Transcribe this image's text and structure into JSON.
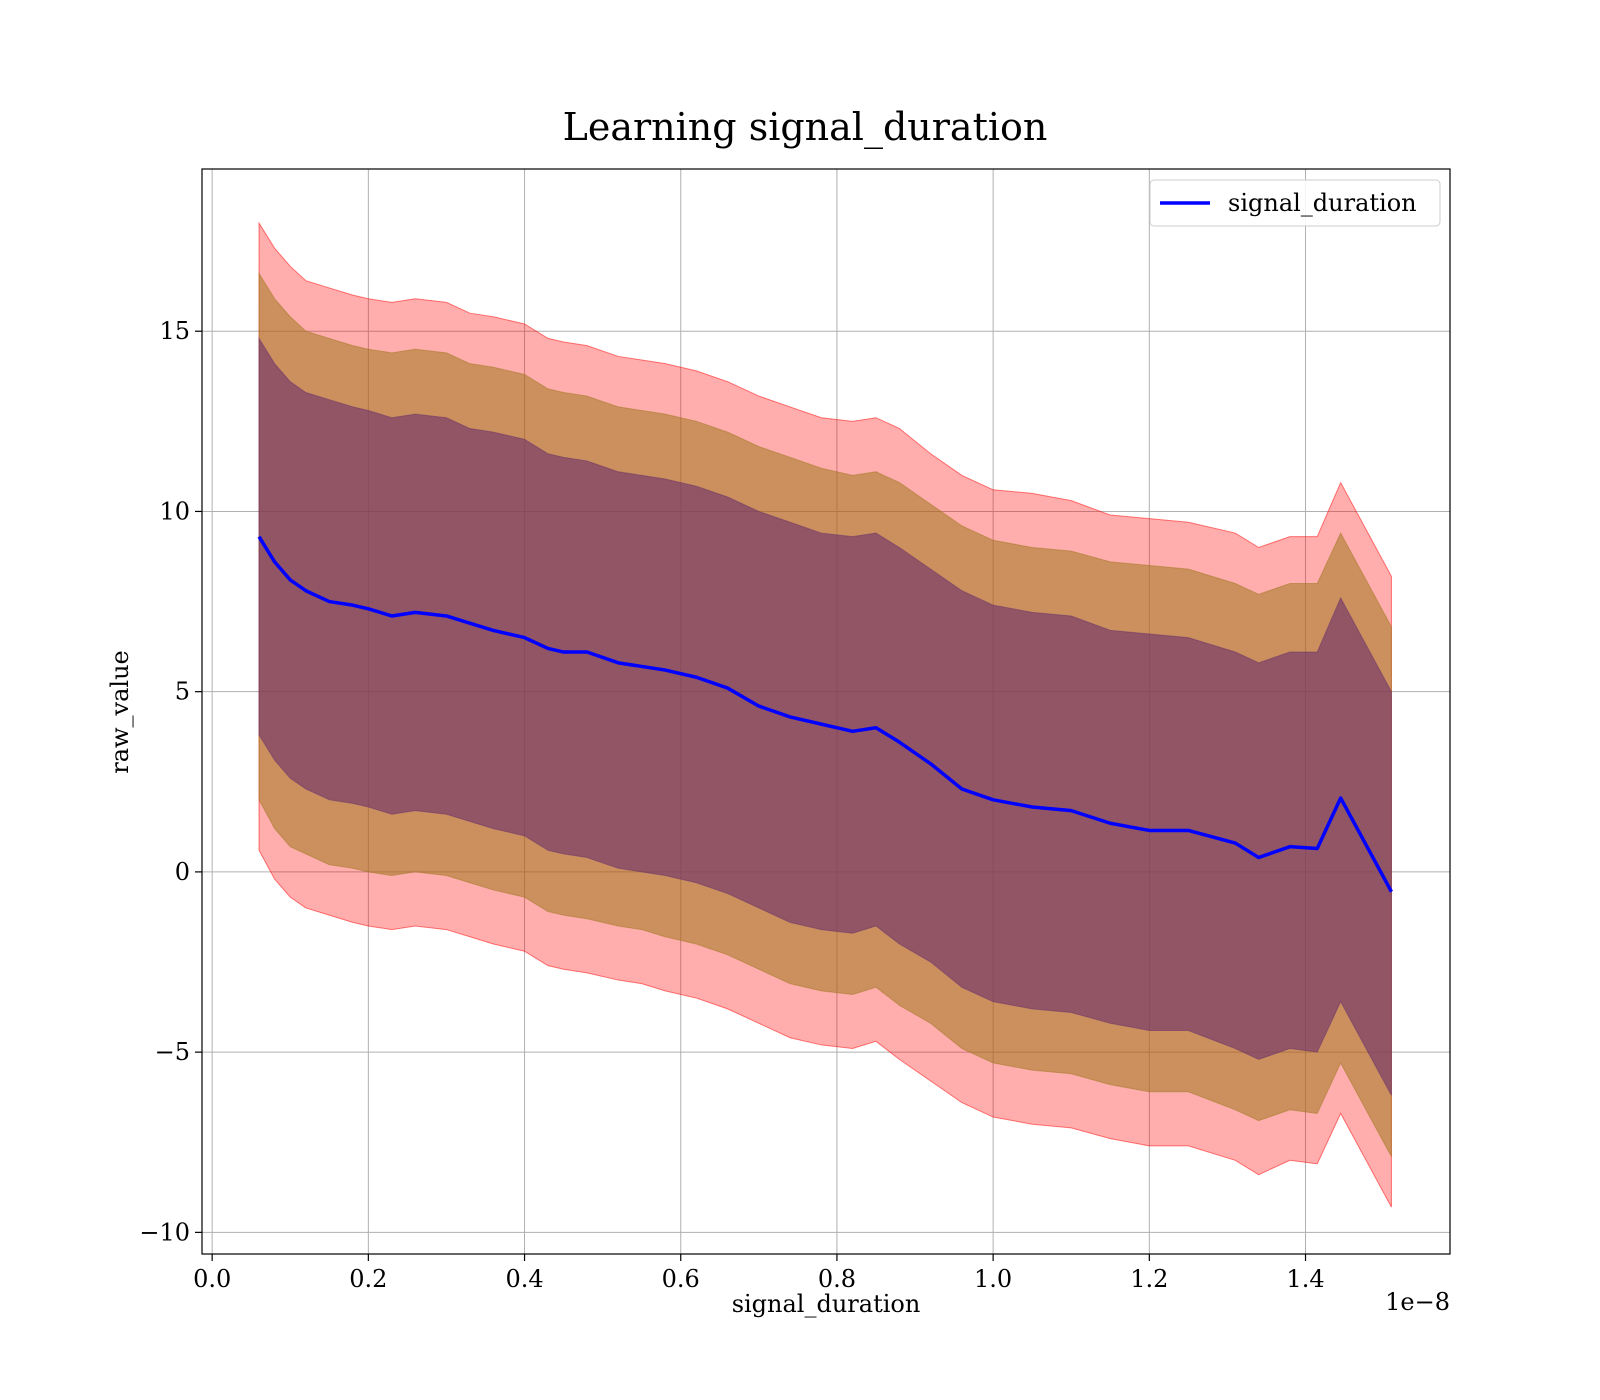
{
  "chart_data": {
    "type": "line",
    "title": "Learning signal_duration",
    "xlabel": "signal_duration",
    "ylabel": "raw_value",
    "x_offset_label": "1e−8",
    "xlim": [
      -0.013,
      1.585
    ],
    "ylim": [
      -10.6,
      19.5
    ],
    "xticks": [
      0.0,
      0.2,
      0.4,
      0.6,
      0.8,
      1.0,
      1.2,
      1.4
    ],
    "xtick_labels": [
      "0.0",
      "0.2",
      "0.4",
      "0.6",
      "0.8",
      "1.0",
      "1.2",
      "1.4"
    ],
    "yticks": [
      -10,
      -5,
      0,
      5,
      10,
      15
    ],
    "ytick_labels": [
      "−10",
      "−5",
      "0",
      "5",
      "10",
      "15"
    ],
    "grid": true,
    "legend": {
      "position": "top-right",
      "entries": [
        "signal_duration"
      ]
    },
    "colors": {
      "line": "#0000ff",
      "band_outer": "#ff0000",
      "band_middle": "#a0781e",
      "band_inner": "#6a2f6a"
    },
    "series": [
      {
        "name": "signal_duration",
        "x": [
          0.06,
          0.08,
          0.1,
          0.12,
          0.15,
          0.18,
          0.2,
          0.23,
          0.26,
          0.3,
          0.33,
          0.36,
          0.4,
          0.43,
          0.45,
          0.48,
          0.52,
          0.55,
          0.58,
          0.62,
          0.66,
          0.7,
          0.74,
          0.78,
          0.82,
          0.85,
          0.88,
          0.92,
          0.96,
          1.0,
          1.05,
          1.1,
          1.15,
          1.2,
          1.25,
          1.31,
          1.34,
          1.38,
          1.415,
          1.445,
          1.51
        ],
        "y": [
          9.3,
          8.6,
          8.1,
          7.8,
          7.5,
          7.4,
          7.3,
          7.1,
          7.2,
          7.1,
          6.9,
          6.7,
          6.5,
          6.2,
          6.1,
          6.1,
          5.8,
          5.7,
          5.6,
          5.4,
          5.1,
          4.6,
          4.3,
          4.1,
          3.9,
          4.0,
          3.6,
          3.0,
          2.3,
          2.0,
          1.8,
          1.7,
          1.35,
          1.15,
          1.15,
          0.8,
          0.4,
          0.7,
          0.65,
          2.05,
          -0.55
        ],
        "band_outer_upper": [
          18.0,
          17.3,
          16.8,
          16.4,
          16.2,
          16.0,
          15.9,
          15.8,
          15.9,
          15.8,
          15.5,
          15.4,
          15.2,
          14.8,
          14.7,
          14.6,
          14.3,
          14.2,
          14.1,
          13.9,
          13.6,
          13.2,
          12.9,
          12.6,
          12.5,
          12.6,
          12.3,
          11.6,
          11.0,
          10.6,
          10.5,
          10.3,
          9.9,
          9.8,
          9.7,
          9.4,
          9.0,
          9.3,
          9.3,
          10.8,
          8.2
        ],
        "band_outer_lower": [
          0.6,
          -0.2,
          -0.7,
          -1.0,
          -1.2,
          -1.4,
          -1.5,
          -1.6,
          -1.5,
          -1.6,
          -1.8,
          -2.0,
          -2.2,
          -2.6,
          -2.7,
          -2.8,
          -3.0,
          -3.1,
          -3.3,
          -3.5,
          -3.8,
          -4.2,
          -4.6,
          -4.8,
          -4.9,
          -4.7,
          -5.2,
          -5.8,
          -6.4,
          -6.8,
          -7.0,
          -7.1,
          -7.4,
          -7.6,
          -7.6,
          -8.0,
          -8.4,
          -8.0,
          -8.1,
          -6.7,
          -9.3
        ],
        "band_middle_upper": [
          16.6,
          15.9,
          15.4,
          15.0,
          14.8,
          14.6,
          14.5,
          14.4,
          14.5,
          14.4,
          14.1,
          14.0,
          13.8,
          13.4,
          13.3,
          13.2,
          12.9,
          12.8,
          12.7,
          12.5,
          12.2,
          11.8,
          11.5,
          11.2,
          11.0,
          11.1,
          10.8,
          10.2,
          9.6,
          9.2,
          9.0,
          8.9,
          8.6,
          8.5,
          8.4,
          8.0,
          7.7,
          8.0,
          8.0,
          9.4,
          6.8
        ],
        "band_middle_lower": [
          2.0,
          1.2,
          0.7,
          0.5,
          0.2,
          0.1,
          0.0,
          -0.1,
          0.0,
          -0.1,
          -0.3,
          -0.5,
          -0.7,
          -1.1,
          -1.2,
          -1.3,
          -1.5,
          -1.6,
          -1.8,
          -2.0,
          -2.3,
          -2.7,
          -3.1,
          -3.3,
          -3.4,
          -3.2,
          -3.7,
          -4.2,
          -4.9,
          -5.3,
          -5.5,
          -5.6,
          -5.9,
          -6.1,
          -6.1,
          -6.6,
          -6.9,
          -6.6,
          -6.7,
          -5.3,
          -7.9
        ],
        "band_inner_upper": [
          14.8,
          14.1,
          13.6,
          13.3,
          13.1,
          12.9,
          12.8,
          12.6,
          12.7,
          12.6,
          12.3,
          12.2,
          12.0,
          11.6,
          11.5,
          11.4,
          11.1,
          11.0,
          10.9,
          10.7,
          10.4,
          10.0,
          9.7,
          9.4,
          9.3,
          9.4,
          9.0,
          8.4,
          7.8,
          7.4,
          7.2,
          7.1,
          6.7,
          6.6,
          6.5,
          6.1,
          5.8,
          6.1,
          6.1,
          7.6,
          5.0
        ],
        "band_inner_lower": [
          3.8,
          3.1,
          2.6,
          2.3,
          2.0,
          1.9,
          1.8,
          1.6,
          1.7,
          1.6,
          1.4,
          1.2,
          1.0,
          0.6,
          0.5,
          0.4,
          0.1,
          0.0,
          -0.1,
          -0.3,
          -0.6,
          -1.0,
          -1.4,
          -1.6,
          -1.7,
          -1.5,
          -2.0,
          -2.5,
          -3.2,
          -3.6,
          -3.8,
          -3.9,
          -4.2,
          -4.4,
          -4.4,
          -4.9,
          -5.2,
          -4.9,
          -5.0,
          -3.6,
          -6.2
        ]
      }
    ]
  }
}
